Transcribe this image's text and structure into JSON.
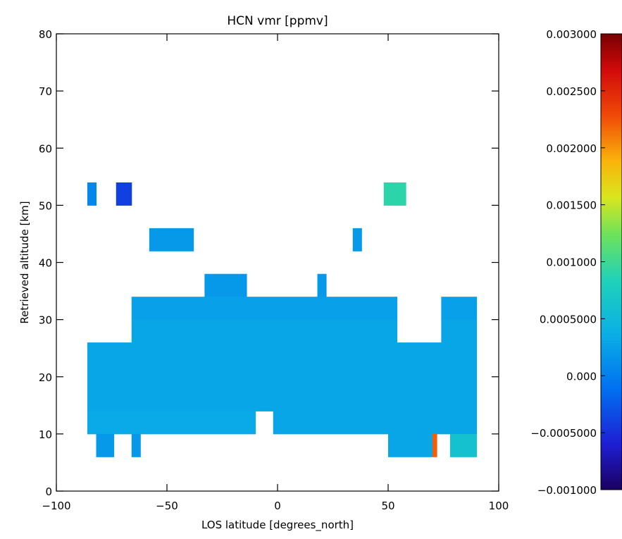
{
  "chart_data": {
    "type": "heatmap",
    "title": "HCN vmr [ppmv]",
    "xlabel": "LOS latitude [degrees_north]",
    "ylabel": "Retrieved altitude [km]",
    "xlim": [
      -100,
      100
    ],
    "ylim": [
      0,
      80
    ],
    "x_ticks": [
      -100,
      -50,
      0,
      50,
      100
    ],
    "y_ticks": [
      0,
      10,
      20,
      30,
      40,
      50,
      60,
      70,
      80
    ],
    "colorbar": {
      "range": [
        -0.001,
        0.003
      ],
      "ticks": [
        {
          "value": 0.003,
          "label": "0.003000"
        },
        {
          "value": 0.0025,
          "label": "0.002500"
        },
        {
          "value": 0.002,
          "label": "0.002000"
        },
        {
          "value": 0.0015,
          "label": "0.001500"
        },
        {
          "value": 0.001,
          "label": "0.001000"
        },
        {
          "value": 0.0005,
          "label": "0.0005000"
        },
        {
          "value": 0.0,
          "label": "0.000"
        },
        {
          "value": -0.0005,
          "label": "-0.0005000"
        },
        {
          "value": -0.001,
          "label": "-0.001000"
        }
      ],
      "colormap": "rainbow (dark blue to dark red)"
    },
    "cells": [
      {
        "x0": -86,
        "x1": -82,
        "y0": 50,
        "y1": 54,
        "value": 5e-05
      },
      {
        "x0": -73,
        "x1": -66,
        "y0": 50,
        "y1": 54,
        "value": -0.0004
      },
      {
        "x0": 48,
        "x1": 58,
        "y0": 50,
        "y1": 54,
        "value": 0.0009
      },
      {
        "x0": -58,
        "x1": -38,
        "y0": 42,
        "y1": 46,
        "value": 0.0002
      },
      {
        "x0": 34,
        "x1": 38,
        "y0": 42,
        "y1": 46,
        "value": 0.0002
      },
      {
        "x0": -33,
        "x1": -14,
        "y0": 34,
        "y1": 38,
        "value": 0.0002
      },
      {
        "x0": 18,
        "x1": 22,
        "y0": 34,
        "y1": 38,
        "value": 0.0002
      },
      {
        "x0": -66,
        "x1": -14,
        "y0": 30,
        "y1": 34,
        "value": 0.00025
      },
      {
        "x0": -14,
        "x1": 22,
        "y0": 30,
        "y1": 34,
        "value": 0.00025
      },
      {
        "x0": 22,
        "x1": 54,
        "y0": 30,
        "y1": 34,
        "value": 0.00025
      },
      {
        "x0": 74,
        "x1": 90,
        "y0": 30,
        "y1": 34,
        "value": 0.00025
      },
      {
        "x0": -66,
        "x1": 54,
        "y0": 26,
        "y1": 30,
        "value": 0.0003
      },
      {
        "x0": 74,
        "x1": 90,
        "y0": 26,
        "y1": 30,
        "value": 0.0003
      },
      {
        "x0": -86,
        "x1": 90,
        "y0": 14,
        "y1": 26,
        "value": 0.0003
      },
      {
        "x0": -86,
        "x1": -10,
        "y0": 10,
        "y1": 14,
        "value": 0.00033
      },
      {
        "x0": -2,
        "x1": 90,
        "y0": 10,
        "y1": 14,
        "value": 0.0003
      },
      {
        "x0": -82,
        "x1": -74,
        "y0": 6,
        "y1": 10,
        "value": 0.0002
      },
      {
        "x0": -66,
        "x1": -62,
        "y0": 6,
        "y1": 10,
        "value": 0.0002
      },
      {
        "x0": 50,
        "x1": 70,
        "y0": 6,
        "y1": 10,
        "value": 0.0003
      },
      {
        "x0": 70,
        "x1": 72,
        "y0": 6,
        "y1": 10,
        "value": 0.0022
      },
      {
        "x0": 78,
        "x1": 90,
        "y0": 6,
        "y1": 10,
        "value": 0.0006
      }
    ]
  }
}
